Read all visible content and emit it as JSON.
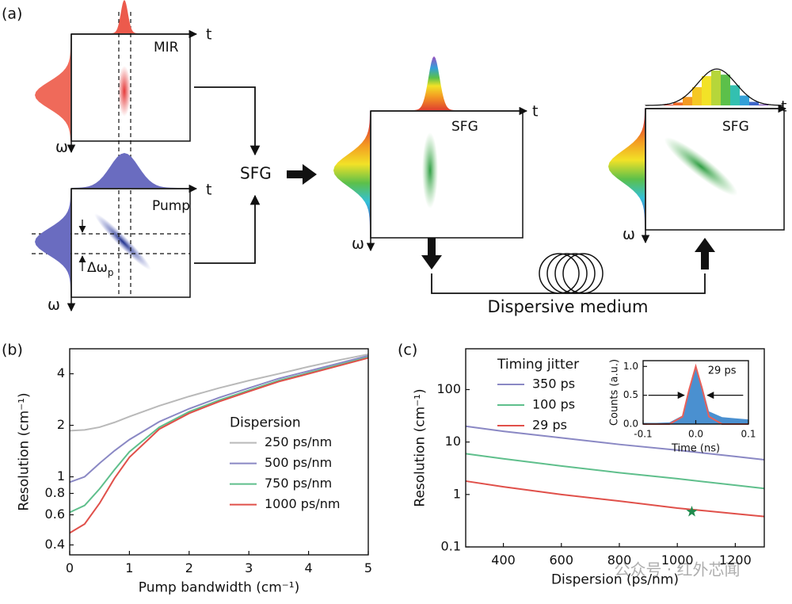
{
  "diagram": {
    "panel": "(a)",
    "mir_t": "t",
    "mir": "MIR",
    "mir_w": "ω",
    "pump_t": "t",
    "pump": "Pump",
    "pump_w": "ω",
    "delta": "Δω",
    "delta_sub": "p",
    "sfg_process": "SFG",
    "sfg1_t": "t",
    "sfg1": "SFG",
    "sfg1_w": "ω",
    "sfg2_t": "t",
    "sfg2": "SFG",
    "sfg2_w": "ω",
    "medium": "Dispersive medium"
  },
  "watermark": "公众号 · 红外芯闻",
  "chart_data": [
    {
      "type": "line",
      "panel": "(b)",
      "xlabel": "Pump bandwidth (cm⁻¹)",
      "ylabel": "Resolution (cm⁻¹)",
      "log_y": true,
      "xlim": [
        0,
        5
      ],
      "ylim": [
        0.35,
        5.6
      ],
      "xticks": [
        0,
        1,
        2,
        3,
        4,
        5
      ],
      "yticks": [
        0.4,
        0.6,
        0.8,
        1,
        2,
        4
      ],
      "legend_title": "Dispersion",
      "legend": "center right",
      "x": [
        0,
        0.25,
        0.5,
        0.75,
        1,
        1.5,
        2,
        2.5,
        3,
        3.5,
        4,
        4.5,
        5
      ],
      "series": [
        {
          "name": "250 ps/nm",
          "color": "#b9b9b9",
          "values": [
            1.86,
            1.88,
            1.95,
            2.08,
            2.25,
            2.6,
            2.95,
            3.3,
            3.65,
            4.0,
            4.4,
            4.8,
            5.2
          ]
        },
        {
          "name": "500 ps/nm",
          "color": "#8a88c4",
          "values": [
            0.93,
            1.0,
            1.2,
            1.42,
            1.65,
            2.1,
            2.5,
            2.9,
            3.3,
            3.75,
            4.15,
            4.6,
            5.1
          ]
        },
        {
          "name": "750 ps/nm",
          "color": "#5fbf8c",
          "values": [
            0.62,
            0.68,
            0.85,
            1.1,
            1.4,
            1.95,
            2.4,
            2.8,
            3.2,
            3.65,
            4.05,
            4.5,
            5.0
          ]
        },
        {
          "name": "1000 ps/nm",
          "color": "#e0504a",
          "values": [
            0.47,
            0.53,
            0.7,
            0.98,
            1.3,
            1.9,
            2.35,
            2.75,
            3.15,
            3.6,
            4.0,
            4.45,
            4.95
          ]
        }
      ]
    },
    {
      "type": "line",
      "panel": "(c)",
      "xlabel": "Dispersion (ps/nm)",
      "ylabel": "Resolution (cm⁻¹)",
      "log_y": true,
      "xlim": [
        270,
        1300
      ],
      "ylim": [
        0.1,
        600
      ],
      "xticks": [
        400,
        600,
        800,
        1000,
        1200
      ],
      "yticks": [
        0.1,
        1,
        10,
        100
      ],
      "legend_title": "Timing jitter",
      "legend": "upper left",
      "x": [
        270,
        400,
        600,
        800,
        1000,
        1200,
        1300
      ],
      "series": [
        {
          "name": "350 ps",
          "color": "#8a88c4",
          "values": [
            20,
            16,
            12,
            9,
            7,
            5.3,
            4.6
          ]
        },
        {
          "name": "100 ps",
          "color": "#5fbf8c",
          "values": [
            6,
            4.8,
            3.5,
            2.6,
            2,
            1.5,
            1.3
          ]
        },
        {
          "name": "29 ps",
          "color": "#e0504a",
          "values": [
            1.8,
            1.4,
            1.0,
            0.75,
            0.55,
            0.43,
            0.38
          ]
        }
      ],
      "marker": {
        "x": 1050,
        "y": 0.47,
        "color": "#1f8a4c"
      }
    },
    {
      "type": "area",
      "xlabel": "Time (ns)",
      "ylabel": "Counts (a.u.)",
      "annotation": "29 ps",
      "log_y": false,
      "xlim": [
        -0.1,
        0.1
      ],
      "ylim": [
        0,
        1.1
      ],
      "xticks": [
        -0.1,
        {
          "value": 0,
          "label": "0.0"
        },
        0.1
      ],
      "yticks": [
        {
          "value": 0,
          "label": "0.0"
        },
        0.5,
        {
          "value": 1,
          "label": "1.0"
        }
      ],
      "x": [
        -0.1,
        -0.075,
        -0.05,
        -0.025,
        -0.0125,
        0,
        0.0125,
        0.025,
        0.05,
        0.075,
        0.1
      ],
      "series": [
        {
          "color": "#4a90d0",
          "fill": true,
          "values": [
            0.02,
            0.02,
            0.03,
            0.15,
            0.62,
            1.0,
            0.65,
            0.22,
            0.12,
            0.1,
            0.08
          ]
        },
        {
          "color": "#e8605a",
          "values": [
            0,
            0,
            0,
            0.13,
            0.6,
            1.0,
            0.6,
            0.13,
            0,
            0,
            0
          ]
        }
      ]
    }
  ]
}
